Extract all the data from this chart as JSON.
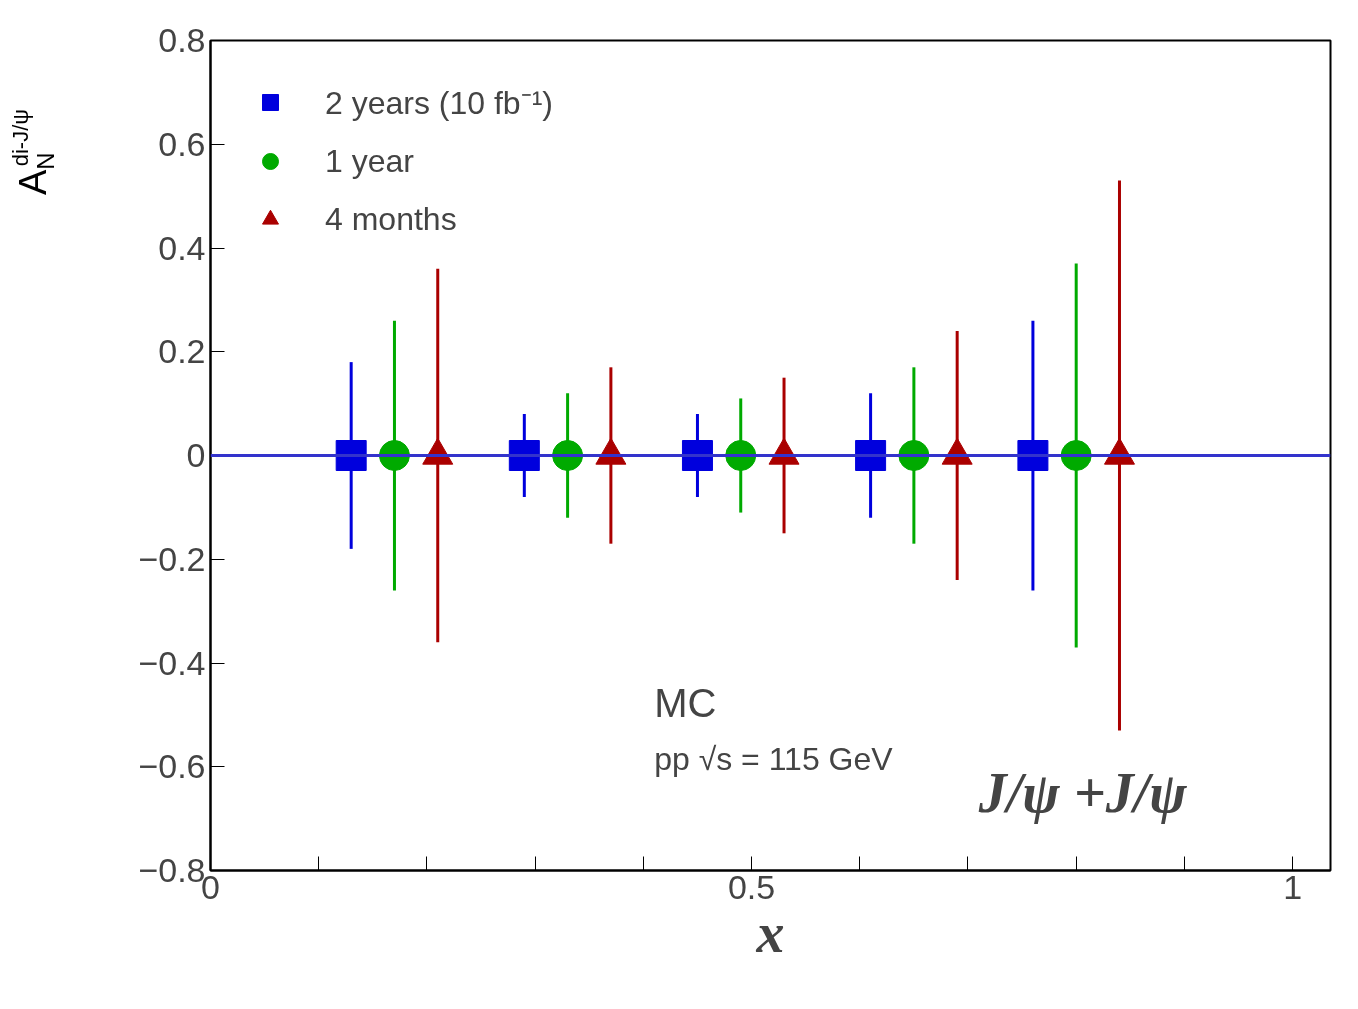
{
  "chart_data": {
    "type": "scatter",
    "xlabel": "x",
    "ylabel": "A$_{N}$$^{di-J/ψ}$",
    "legend": "top left",
    "grid": false,
    "xlim": [
      0,
      1.035
    ],
    "ylim": [
      -0.8,
      0.8
    ],
    "xticks": [
      0,
      {
        "value": 0.1,
        "label": null
      },
      {
        "value": 0.2,
        "label": null
      },
      {
        "value": 0.3,
        "label": null
      },
      {
        "value": 0.4,
        "label": null
      },
      0.5,
      {
        "value": 0.6,
        "label": null
      },
      {
        "value": 0.7,
        "label": null
      },
      {
        "value": 0.8,
        "label": null
      },
      {
        "value": 0.9,
        "label": null
      },
      1
    ],
    "yticks": [
      {
        "value": -0.8,
        "label": "−0.8"
      },
      {
        "value": -0.6,
        "label": "−0.6"
      },
      {
        "value": -0.4,
        "label": "−0.4"
      },
      {
        "value": -0.2,
        "label": "−0.2"
      },
      0,
      0.2,
      0.4,
      0.6,
      0.8
    ],
    "ref_lines": [
      {
        "axis": "y",
        "value": 0,
        "label": null,
        "color": "#3333cc"
      }
    ],
    "annotations": [
      "MC",
      "pp √s = 115 GeV",
      "J/ψ +J/ψ"
    ],
    "series": [
      {
        "name": "2 years (10 fb⁻¹)",
        "color": "#0000dd",
        "marker": "square",
        "x": [
          0.13,
          0.29,
          0.45,
          0.61,
          0.76
        ],
        "values": [
          0,
          0,
          0,
          0,
          0
        ],
        "errors": [
          0.18,
          0.08,
          0.08,
          0.12,
          0.26
        ]
      },
      {
        "name": "1 year",
        "color": "#00aa00",
        "marker": "circle",
        "x": [
          0.17,
          0.33,
          0.49,
          0.65,
          0.8
        ],
        "values": [
          0,
          0,
          0,
          0,
          0
        ],
        "errors": [
          0.26,
          0.12,
          0.11,
          0.17,
          0.37
        ]
      },
      {
        "name": "4 months",
        "color": "#aa0000",
        "marker": "triangle",
        "x": [
          0.21,
          0.37,
          0.53,
          0.69,
          0.84
        ],
        "values": [
          0,
          0,
          0,
          0,
          0
        ],
        "errors": [
          0.36,
          0.17,
          0.15,
          0.24,
          0.53
        ]
      }
    ]
  }
}
